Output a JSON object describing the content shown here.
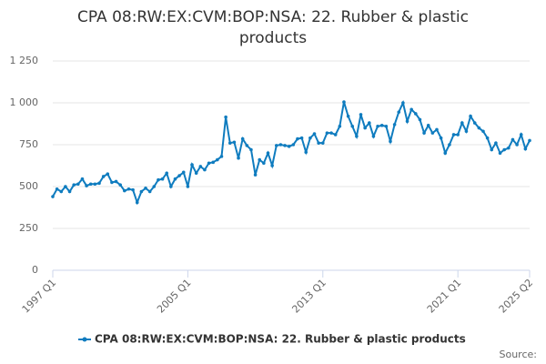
{
  "chart_data": {
    "type": "line",
    "title": "CPA 08:RW:EX:CVM:BOP:NSA: 22. Rubber & plastic products",
    "source": "Source:",
    "categories": [
      "1997 Q1",
      null,
      null,
      null,
      null,
      null,
      null,
      null,
      null,
      null,
      null,
      null,
      null,
      null,
      null,
      null,
      null,
      null,
      null,
      null,
      null,
      null,
      null,
      null,
      null,
      null,
      null,
      null,
      null,
      null,
      null,
      null,
      "2005 Q1",
      null,
      null,
      null,
      null,
      null,
      null,
      null,
      null,
      null,
      null,
      null,
      null,
      null,
      null,
      null,
      null,
      null,
      null,
      null,
      null,
      null,
      null,
      null,
      null,
      null,
      null,
      null,
      null,
      null,
      null,
      null,
      "2013 Q1",
      null,
      null,
      null,
      null,
      null,
      null,
      null,
      null,
      null,
      null,
      null,
      null,
      null,
      null,
      null,
      null,
      null,
      null,
      null,
      null,
      null,
      null,
      null,
      null,
      null,
      null,
      null,
      null,
      null,
      null,
      null,
      "2021 Q1",
      null,
      null,
      null,
      null,
      null,
      null,
      null,
      null,
      null,
      null,
      null,
      null,
      null,
      null,
      null,
      null,
      "2025 Q2"
    ],
    "series": [
      {
        "name": "CPA 08:RW:EX:CVM:BOP:NSA: 22. Rubber & plastic products",
        "color": "#0f7cbf",
        "values": [
          440,
          485,
          470,
          500,
          470,
          510,
          515,
          545,
          505,
          515,
          515,
          520,
          560,
          575,
          525,
          530,
          510,
          475,
          485,
          480,
          405,
          470,
          490,
          470,
          500,
          540,
          545,
          580,
          500,
          545,
          565,
          585,
          500,
          630,
          580,
          620,
          600,
          640,
          645,
          660,
          680,
          915,
          760,
          765,
          670,
          785,
          745,
          720,
          570,
          660,
          640,
          700,
          625,
          745,
          750,
          745,
          740,
          750,
          785,
          790,
          705,
          790,
          815,
          760,
          760,
          820,
          820,
          810,
          860,
          1005,
          920,
          860,
          800,
          930,
          850,
          880,
          800,
          860,
          865,
          860,
          770,
          870,
          945,
          1000,
          890,
          960,
          935,
          900,
          820,
          865,
          820,
          840,
          790,
          700,
          750,
          810,
          810,
          880,
          830,
          920,
          880,
          850,
          830,
          790,
          720,
          760,
          700,
          720,
          730,
          780,
          750,
          810,
          725,
          775
        ]
      }
    ],
    "ylim": [
      0,
      1250
    ],
    "yticks": [
      0,
      250,
      500,
      750,
      {
        "value": 1000,
        "label": "1 000"
      },
      {
        "value": 1250,
        "label": "1 250"
      }
    ],
    "grid": true
  }
}
